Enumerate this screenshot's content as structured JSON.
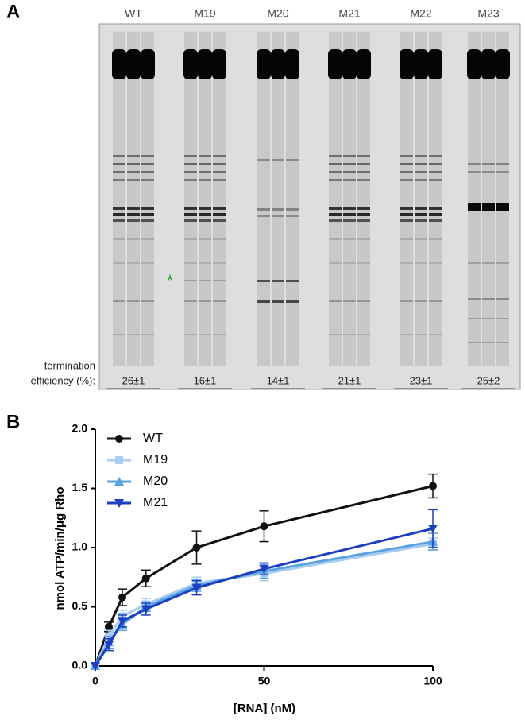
{
  "panel_labels": [
    "A",
    "B"
  ],
  "gel": {
    "lanes": [
      {
        "label": "WT",
        "efficiency": "26±1"
      },
      {
        "label": "M19",
        "efficiency": "16±1"
      },
      {
        "label": "M20",
        "efficiency": "14±1"
      },
      {
        "label": "M21",
        "efficiency": "21±1"
      },
      {
        "label": "M22",
        "efficiency": "23±1"
      },
      {
        "label": "M23",
        "efficiency": "25±2"
      }
    ],
    "efficiency_label": [
      "termination",
      "efficiency (%):"
    ],
    "marker": "*"
  },
  "chart_data": {
    "type": "line",
    "x_label": "[RNA] (nM)",
    "y_label": "nmol ATP/min/μg Rho",
    "x": [
      0,
      4,
      8,
      15,
      30,
      50,
      100
    ],
    "xlim": [
      0,
      100
    ],
    "xticks": [
      0,
      50,
      100
    ],
    "ylim": [
      0,
      2
    ],
    "yticks": [
      {
        "value": 0,
        "label": "0.0"
      },
      {
        "value": 0.5,
        "label": "0.5"
      },
      {
        "value": 1,
        "label": "1.0"
      },
      {
        "value": 1.5,
        "label": "1.5"
      },
      {
        "value": 2,
        "label": "2.0"
      }
    ],
    "legend": "upper left",
    "series": [
      {
        "name": "WT",
        "color": "#111111",
        "marker": "circle",
        "values": [
          0,
          0.33,
          0.58,
          0.74,
          1.0,
          1.18,
          1.52
        ],
        "errors": [
          0,
          0.04,
          0.07,
          0.07,
          0.14,
          0.13,
          0.1
        ]
      },
      {
        "name": "M19",
        "color": "#a9cdf0",
        "marker": "square",
        "values": [
          0,
          0.25,
          0.42,
          0.52,
          0.7,
          0.78,
          1.03
        ],
        "errors": [
          0,
          0.05,
          0.05,
          0.05,
          0.05,
          0.06,
          0.05
        ]
      },
      {
        "name": "M20",
        "color": "#5ba3e0",
        "marker": "triangle",
        "values": [
          0,
          0.2,
          0.35,
          0.5,
          0.68,
          0.8,
          1.05
        ],
        "errors": [
          0,
          0.05,
          0.05,
          0.04,
          0.05,
          0.06,
          0.07
        ]
      },
      {
        "name": "M21",
        "color": "#1c3fbf",
        "marker": "triangle-down",
        "values": [
          0,
          0.18,
          0.38,
          0.48,
          0.66,
          0.82,
          1.16
        ],
        "errors": [
          0,
          0.05,
          0.05,
          0.05,
          0.06,
          0.05,
          0.16
        ]
      }
    ]
  }
}
